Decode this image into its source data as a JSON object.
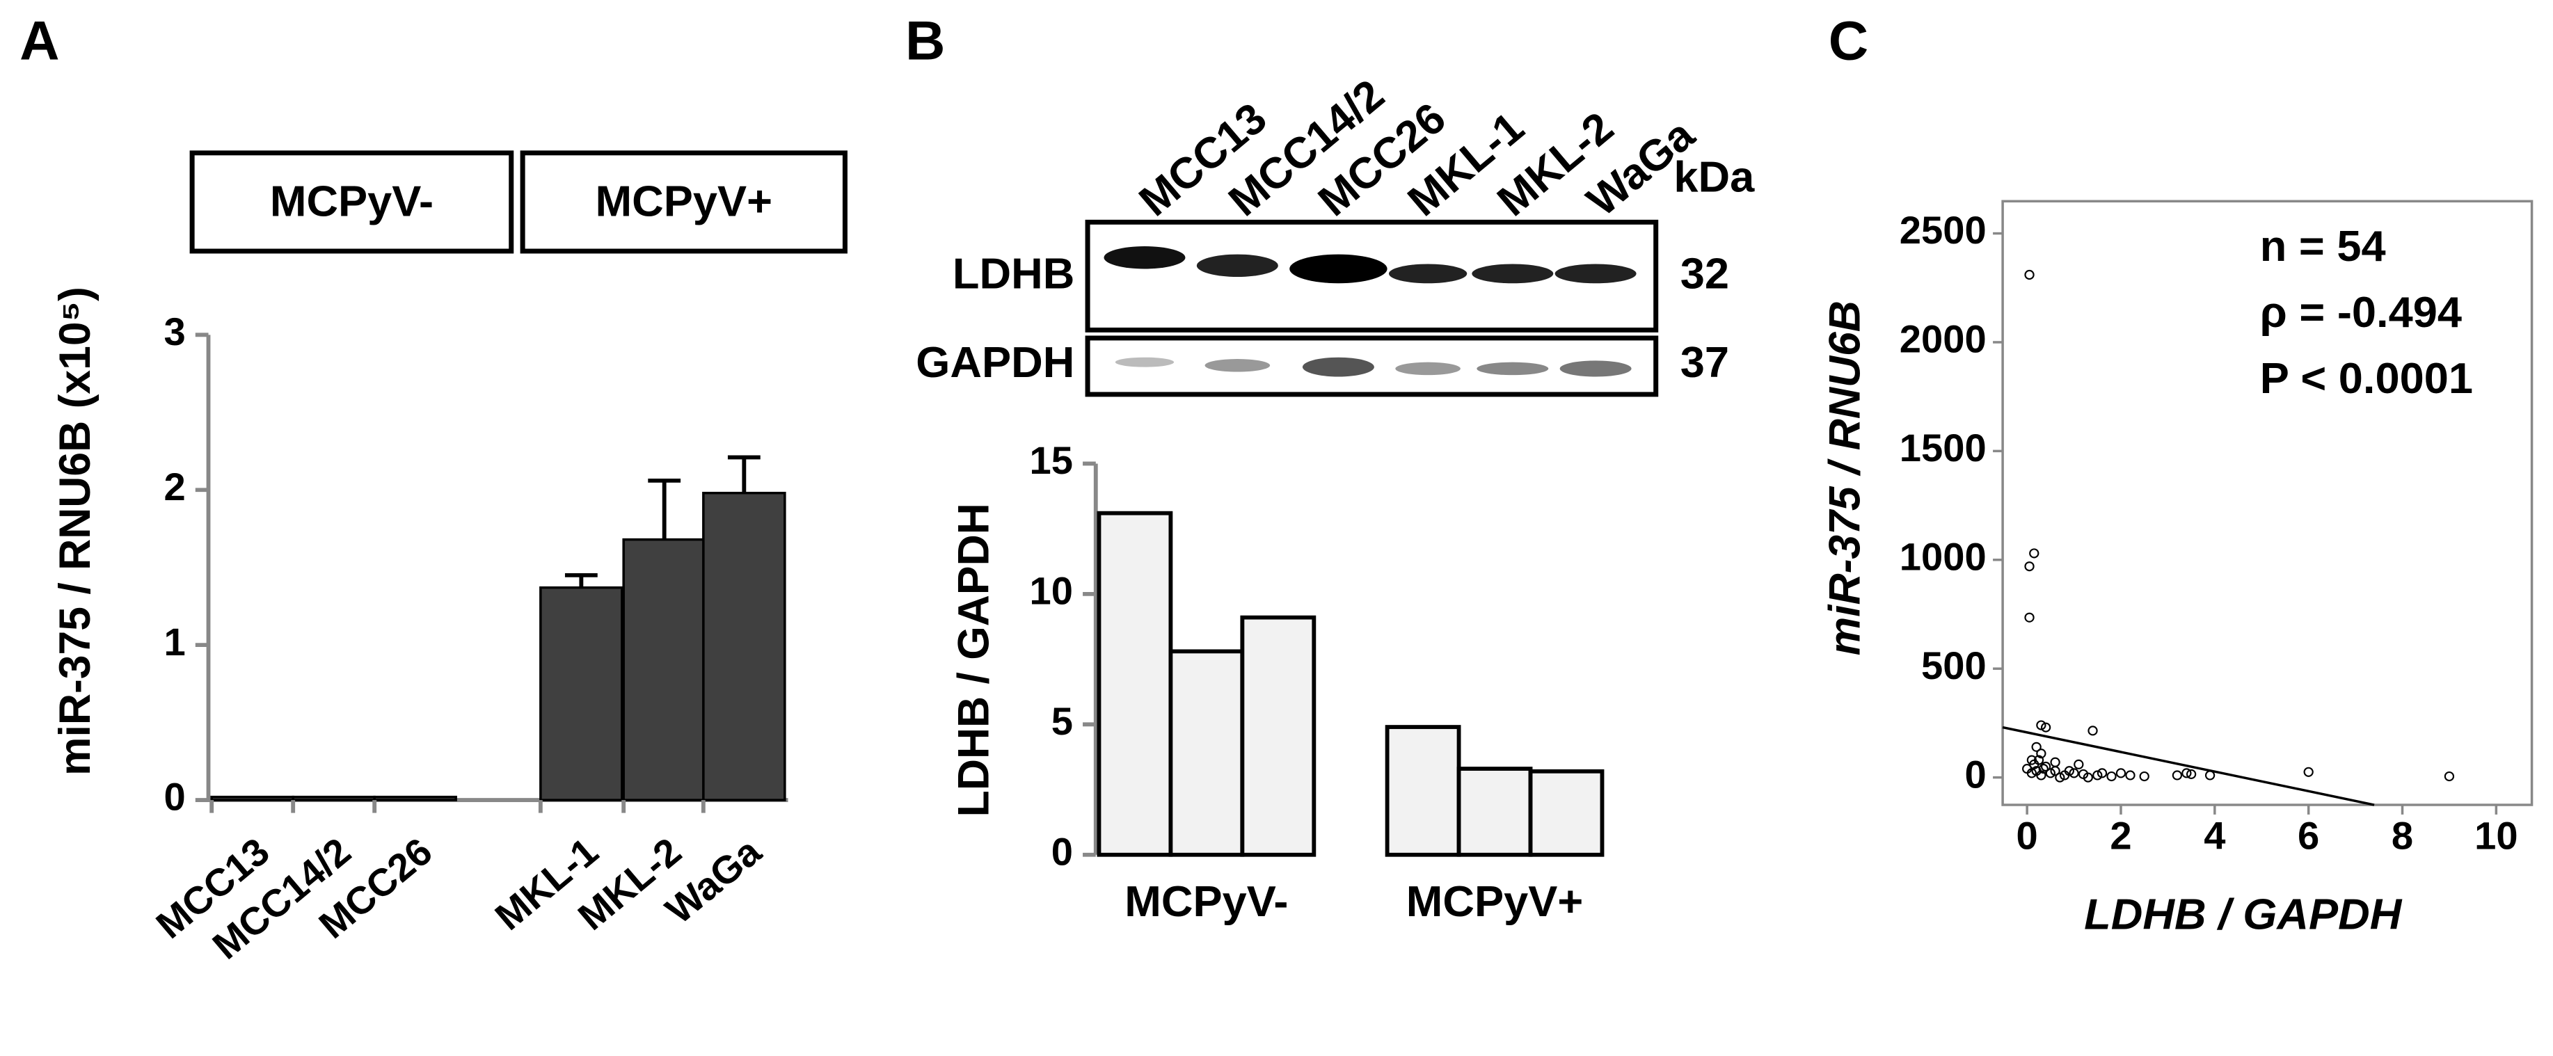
{
  "chart_data": [
    {
      "type": "bar",
      "panel": "A",
      "ylabel": "miR-375 / RNU6B (x10⁵)",
      "group_labels": [
        "MCPyV-",
        "MCPyV+"
      ],
      "categories": [
        "MCC13",
        "MCC14/2",
        "MCC26",
        "MKL-1",
        "MKL-2",
        "WaGa"
      ],
      "values": [
        0.02,
        0.02,
        0.02,
        1.37,
        1.68,
        1.98
      ],
      "errors": [
        0,
        0,
        0,
        0.08,
        0.38,
        0.23
      ],
      "color": "#404040",
      "ylim": [
        0,
        3
      ],
      "yticks": [
        0,
        1,
        2,
        3
      ]
    },
    {
      "type": "bar",
      "panel": "B",
      "blot": {
        "lanes": [
          "MCC13",
          "MCC14/2",
          "MCC26",
          "MKL-1",
          "MKL-2",
          "WaGa"
        ],
        "unit": "kDa",
        "rows": [
          {
            "label": "LDHB",
            "kda": 32
          },
          {
            "label": "GAPDH",
            "kda": 37
          }
        ]
      },
      "ylabel": "LDHB / GAPDH",
      "groups": [
        {
          "name": "MCPyV-",
          "values": [
            13.1,
            7.8,
            9.1
          ]
        },
        {
          "name": "MCPyV+",
          "values": [
            4.9,
            3.3,
            3.2
          ]
        }
      ],
      "color": "#f2f2f2",
      "ylim": [
        0,
        15
      ],
      "yticks": [
        0,
        5,
        10,
        15
      ]
    },
    {
      "type": "scatter",
      "panel": "C",
      "xlabel": "LDHB / GAPDH",
      "ylabel": "miR-375 / RNU6B",
      "annotations": [
        "n = 54",
        "ρ = -0.494",
        "P < 0.0001"
      ],
      "x": [
        0.05,
        0.05,
        0.15,
        0.05,
        0.3,
        0.4,
        1.4,
        0.2,
        0.3,
        0.1,
        0,
        0.1,
        0.2,
        0.3,
        0.4,
        0.5,
        0.6,
        0.8,
        0.9,
        1.0,
        1.1,
        1.2,
        1.5,
        1.6,
        1.8,
        2.0,
        2.2,
        2.5,
        3.2,
        3.4,
        3.5,
        3.9,
        6.0,
        9.0,
        0.15,
        0.25,
        0.35,
        0.6,
        0.7,
        1.3
      ],
      "y": [
        2310,
        970,
        1030,
        735,
        240,
        230,
        215,
        140,
        110,
        80,
        40,
        20,
        30,
        10,
        50,
        20,
        30,
        10,
        30,
        20,
        60,
        15,
        10,
        20,
        5,
        20,
        10,
        5,
        10,
        20,
        15,
        10,
        25,
        5,
        60,
        80,
        40,
        70,
        0,
        0
      ],
      "fit": {
        "intercept": 207,
        "slope": -45
      },
      "color": "#000000",
      "xlim": [
        -0.52,
        10.76
      ],
      "xticks": [
        0,
        2,
        4,
        6,
        8,
        10
      ],
      "ylim": [
        -126,
        2648
      ],
      "yticks": [
        0,
        500,
        1000,
        1500,
        2000,
        2500
      ]
    }
  ]
}
